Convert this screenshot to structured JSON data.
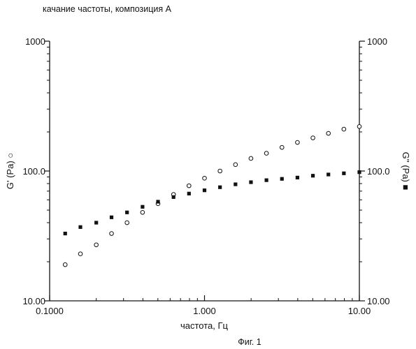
{
  "chart_data": {
    "type": "scatter",
    "title": "качание частоты, композиция А",
    "caption": "Фиг. 1",
    "xlabel": "частота, Гц",
    "ylabel_left": "G' (Pa) ○",
    "ylabel_right": "G'' (Pa) ■",
    "x_scale": "log",
    "y_scale": "log",
    "xlim": [
      0.1,
      10.0
    ],
    "ylim_left": [
      10.0,
      1000.0
    ],
    "ylim_right": [
      10.0,
      1000.0
    ],
    "x_ticks": [
      {
        "value": 0.1,
        "label": "0.1000"
      },
      {
        "value": 1.0,
        "label": "1.000"
      },
      {
        "value": 10.0,
        "label": "10.00"
      }
    ],
    "y_ticks_left": [
      {
        "value": 10.0,
        "label": "10.00"
      },
      {
        "value": 100.0,
        "label": "100.0"
      },
      {
        "value": 1000.0,
        "label": "1000"
      }
    ],
    "y_ticks_right": [
      {
        "value": 10.0,
        "label": "10.00"
      },
      {
        "value": 100.0,
        "label": "100.0"
      },
      {
        "value": 1000.0,
        "label": "1000"
      }
    ],
    "grid": false,
    "x": [
      0.126,
      0.158,
      0.2,
      0.251,
      0.316,
      0.398,
      0.501,
      0.631,
      0.794,
      1.0,
      1.259,
      1.585,
      1.995,
      2.512,
      3.162,
      3.981,
      5.012,
      6.31,
      7.943,
      10.0
    ],
    "series": [
      {
        "label": "G'",
        "axis": "left",
        "marker": "open-circle",
        "color": "#111111",
        "values": [
          19,
          23,
          27,
          33,
          40,
          48,
          56,
          66,
          77,
          88,
          100,
          112,
          125,
          137,
          152,
          166,
          180,
          195,
          210,
          220
        ]
      },
      {
        "label": "G''",
        "axis": "right",
        "marker": "filled-square",
        "color": "#111111",
        "values": [
          33,
          37,
          40,
          44,
          48,
          53,
          58,
          63,
          67,
          71,
          75,
          79,
          82,
          85,
          87,
          89,
          92,
          94,
          96,
          98
        ]
      }
    ]
  }
}
